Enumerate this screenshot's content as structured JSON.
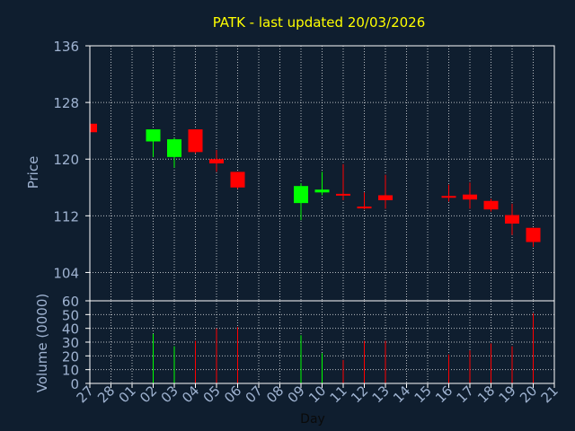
{
  "colors": {
    "background": "#0f1e2f",
    "title": "#ffff00",
    "text": "#9fb3d1",
    "axis": "#ffffff",
    "grid": "#ffffff",
    "up": "#00ff00",
    "down": "#ff0000",
    "xlabel": "#0a0a0a"
  },
  "chart_data": [
    {
      "type": "candlestick",
      "title": "PATK - last updated 20/03/2026",
      "ylabel": "Price",
      "ylim": [
        100,
        136
      ],
      "yticks": [
        104,
        112,
        120,
        128,
        136
      ],
      "grid": true,
      "categories": [
        "27",
        "28",
        "01",
        "02",
        "03",
        "04",
        "05",
        "06",
        "07",
        "08",
        "09",
        "10",
        "11",
        "12",
        "13",
        "14",
        "15",
        "16",
        "17",
        "18",
        "19",
        "20",
        "21"
      ],
      "candles": [
        {
          "day": "27",
          "open": 125.0,
          "high": 125.0,
          "low": 123.8,
          "close": 123.8
        },
        {
          "day": "02",
          "open": 122.5,
          "high": 124.2,
          "low": 120.3,
          "close": 124.2
        },
        {
          "day": "03",
          "open": 120.3,
          "high": 123.0,
          "low": 118.8,
          "close": 122.8
        },
        {
          "day": "04",
          "open": 124.2,
          "high": 124.2,
          "low": 120.8,
          "close": 121.0
        },
        {
          "day": "05",
          "open": 120.0,
          "high": 121.3,
          "low": 118.2,
          "close": 119.4
        },
        {
          "day": "06",
          "open": 118.2,
          "high": 118.2,
          "low": 115.8,
          "close": 116.0
        },
        {
          "day": "09",
          "open": 113.8,
          "high": 116.6,
          "low": 111.4,
          "close": 116.2
        },
        {
          "day": "10",
          "open": 115.3,
          "high": 118.2,
          "low": 114.9,
          "close": 115.7
        },
        {
          "day": "11",
          "open": 115.1,
          "high": 119.3,
          "low": 114.2,
          "close": 114.9
        },
        {
          "day": "12",
          "open": 113.3,
          "high": 115.3,
          "low": 112.9,
          "close": 113.1
        },
        {
          "day": "13",
          "open": 114.9,
          "high": 117.8,
          "low": 113.0,
          "close": 114.2
        },
        {
          "day": "16",
          "open": 114.8,
          "high": 116.4,
          "low": 114.0,
          "close": 114.6
        },
        {
          "day": "17",
          "open": 115.0,
          "high": 116.7,
          "low": 113.0,
          "close": 114.3
        },
        {
          "day": "18",
          "open": 114.1,
          "high": 114.4,
          "low": 112.6,
          "close": 112.9
        },
        {
          "day": "19",
          "open": 112.1,
          "high": 113.7,
          "low": 109.3,
          "close": 110.9
        },
        {
          "day": "20",
          "open": 110.3,
          "high": 110.3,
          "low": 107.6,
          "close": 108.3
        }
      ]
    },
    {
      "type": "bar",
      "ylabel": "Volume (0000)",
      "xlabel": "Day",
      "ylim": [
        0,
        60
      ],
      "yticks": [
        0,
        10,
        20,
        30,
        40,
        50,
        60
      ],
      "grid": true,
      "volumes": [
        {
          "day": "02",
          "value": 36,
          "dir": "up"
        },
        {
          "day": "03",
          "value": 27,
          "dir": "up"
        },
        {
          "day": "04",
          "value": 31,
          "dir": "down"
        },
        {
          "day": "05",
          "value": 40,
          "dir": "down"
        },
        {
          "day": "06",
          "value": 41,
          "dir": "down"
        },
        {
          "day": "09",
          "value": 35,
          "dir": "up"
        },
        {
          "day": "10",
          "value": 22,
          "dir": "up"
        },
        {
          "day": "11",
          "value": 17,
          "dir": "down"
        },
        {
          "day": "12",
          "value": 31,
          "dir": "down"
        },
        {
          "day": "13",
          "value": 31,
          "dir": "down"
        },
        {
          "day": "16",
          "value": 21,
          "dir": "down"
        },
        {
          "day": "17",
          "value": 24,
          "dir": "down"
        },
        {
          "day": "18",
          "value": 29,
          "dir": "down"
        },
        {
          "day": "19",
          "value": 27,
          "dir": "down"
        },
        {
          "day": "20",
          "value": 51,
          "dir": "down"
        }
      ]
    }
  ]
}
